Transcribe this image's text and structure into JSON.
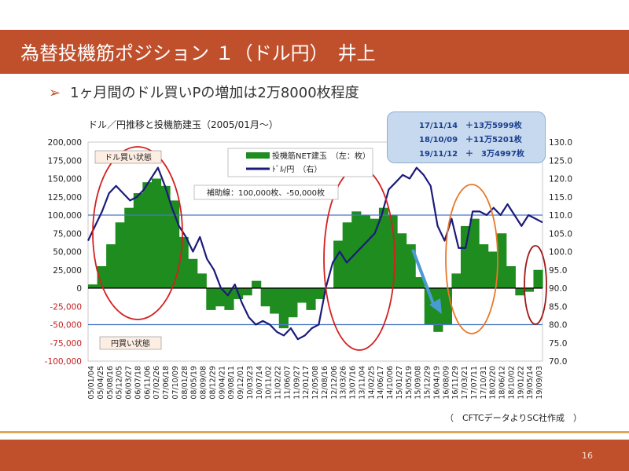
{
  "slide": {
    "title": "為替投機筋ポジション １（ドル円）　井上",
    "bullet": "1ヶ月間のドル買いPの増加は2万8000枚程度",
    "chart_caption": "ドル／円推移と投機筋建玉（2005/01月～）",
    "infobox": [
      "17/11/14　＋13万5999枚",
      "18/10/09　＋11万5201枚",
      "19/11/12　＋　3万4997枚"
    ],
    "source": "（　CFTCデータよりSC社作成　）",
    "page_number": "16"
  },
  "colors": {
    "title_bar": "#c0502c",
    "bar_green": "#1e8c1e",
    "line_navy": "#1b1b7a",
    "guide_blue": "#4a78c4",
    "circle_red": "#d42020",
    "circle_orange": "#e8782a",
    "circle_darkred": "#a01818",
    "infobox_fill": "#c6d9ee",
    "arrow_blue": "#4a9ad4"
  },
  "chart_data": {
    "type": "bar+line",
    "left_axis": {
      "min": -100000,
      "max": 200000,
      "step": 25000,
      "labels": [
        "200,000",
        "175,000",
        "150,000",
        "125,000",
        "100,000",
        "75,000",
        "50,000",
        "25,000",
        "0",
        "-25,000",
        "-50,000",
        "-75,000",
        "-100,000"
      ]
    },
    "right_axis": {
      "min": 70,
      "max": 130,
      "step": 5,
      "labels": [
        "130.0",
        "125.0",
        "120.0",
        "115.0",
        "110.0",
        "105.0",
        "100.0",
        "95.0",
        "90.0",
        "85.0",
        "80.0",
        "75.0",
        "70.0"
      ]
    },
    "x_labels": [
      "05/01/04",
      "05/04/25",
      "05/08/16",
      "05/12/05",
      "06/03/27",
      "06/07/18",
      "06/11/06",
      "07/02/26",
      "07/06/18",
      "07/10/09",
      "08/01/28",
      "08/05/19",
      "08/09/08",
      "08/12/29",
      "09/04/21",
      "09/08/11",
      "09/12/01",
      "10/03/23",
      "10/07/14",
      "10/11/02",
      "11/02/22",
      "11/06/07",
      "11/09/27",
      "12/01/17",
      "12/05/08",
      "12/08/16",
      "12/12/06",
      "13/03/26",
      "13/07/16",
      "13/11/04",
      "14/02/25",
      "14/06/17",
      "14/10/06",
      "15/01/27",
      "15/05/19",
      "15/09/08",
      "15/12/29",
      "16/04/19",
      "16/08/09",
      "16/11/29",
      "17/03/21",
      "17/07/11",
      "17/10/31",
      "18/02/20",
      "18/06/12",
      "18/10/02",
      "19/01/22",
      "19/05/14",
      "19/09/03"
    ],
    "legend": [
      "投機筋NET建玉　（左：枚）",
      "ﾄﾞﾙ/円　（右）"
    ],
    "guides": {
      "label": "補助線：100,000枚、-50,000枚",
      "values": [
        100000,
        -50000
      ]
    },
    "annotations": {
      "buy": "ドル買い状態",
      "sell": "円買い状態"
    },
    "series": [
      {
        "name": "投機筋NET建玉　（左：枚）",
        "kind": "bar",
        "axis": "left",
        "values": [
          5000,
          30000,
          60000,
          90000,
          110000,
          130000,
          145000,
          150000,
          140000,
          120000,
          70000,
          40000,
          20000,
          -30000,
          -25000,
          -30000,
          -15000,
          -10000,
          10000,
          -25000,
          -35000,
          -55000,
          -40000,
          -20000,
          -30000,
          -15000,
          0,
          65000,
          90000,
          105000,
          100000,
          95000,
          110000,
          100000,
          75000,
          60000,
          15000,
          -50000,
          -60000,
          -50000,
          20000,
          85000,
          95000,
          60000,
          50000,
          75000,
          30000,
          -10000,
          -5000,
          25000
        ]
      },
      {
        "name": "ﾄﾞﾙ/円　（右）",
        "kind": "line",
        "axis": "right",
        "values": [
          103,
          107,
          111,
          116,
          118,
          116,
          114,
          115,
          117,
          120,
          123,
          118,
          112,
          107,
          104,
          100,
          104,
          98,
          95,
          90,
          88,
          91,
          86,
          82,
          80,
          81,
          80,
          78,
          77,
          79,
          76,
          77,
          79,
          80,
          90,
          97,
          100,
          97,
          99,
          101,
          103,
          105,
          110,
          117,
          119,
          121,
          120,
          123,
          121,
          118,
          107,
          103,
          109,
          101,
          101,
          111,
          111,
          110,
          112,
          110,
          113,
          110,
          107,
          110,
          109,
          108
        ]
      }
    ]
  }
}
